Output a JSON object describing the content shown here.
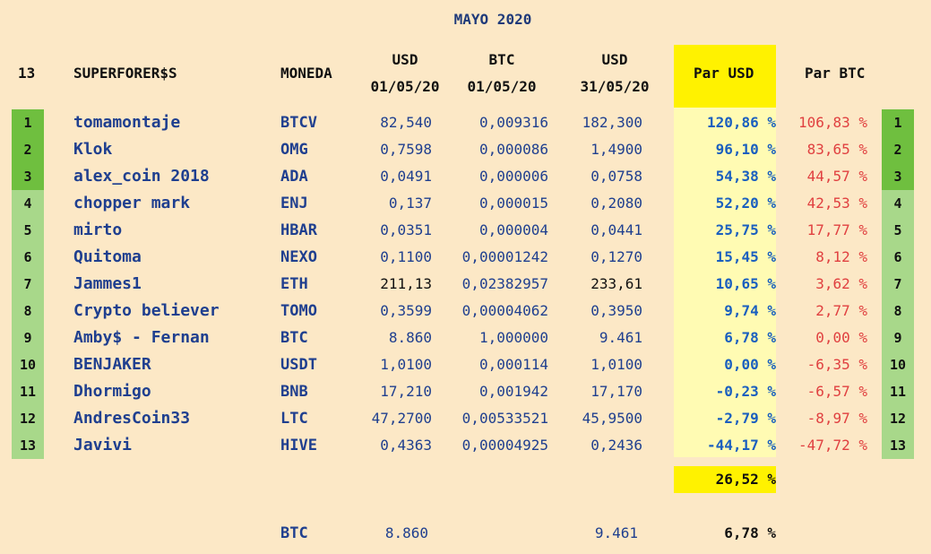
{
  "title": "MAYO 2020",
  "headers": {
    "count": "13",
    "name": "SUPERFORER$S",
    "coin": "MONEDA",
    "usd1_top": "USD",
    "usd1_bottom": "01/05/20",
    "btc1_top": "BTC",
    "btc1_bottom": "01/05/20",
    "usd2_top": "USD",
    "usd2_bottom": "31/05/20",
    "par_usd": "Par USD",
    "par_btc": "Par BTC"
  },
  "rows": [
    {
      "rank": "1",
      "name": "tomamontaje",
      "coin": "BTCV",
      "usd1": "82,540",
      "btc1": "0,009316",
      "usd2": "182,300",
      "par_usd": "120,86 %",
      "par_btc": "106,83 %"
    },
    {
      "rank": "2",
      "name": "Klok",
      "coin": "OMG",
      "usd1": "0,7598",
      "btc1": "0,000086",
      "usd2": "1,4900",
      "par_usd": "96,10 %",
      "par_btc": "83,65 %"
    },
    {
      "rank": "3",
      "name": "alex_coin 2018",
      "coin": "ADA",
      "usd1": "0,0491",
      "btc1": "0,000006",
      "usd2": "0,0758",
      "par_usd": "54,38 %",
      "par_btc": "44,57 %"
    },
    {
      "rank": "4",
      "name": "chopper mark",
      "coin": "ENJ",
      "usd1": "0,137",
      "btc1": "0,000015",
      "usd2": "0,2080",
      "par_usd": "52,20 %",
      "par_btc": "42,53 %"
    },
    {
      "rank": "5",
      "name": "mirto",
      "coin": "HBAR",
      "usd1": "0,0351",
      "btc1": "0,000004",
      "usd2": "0,0441",
      "par_usd": "25,75 %",
      "par_btc": "17,77 %"
    },
    {
      "rank": "6",
      "name": "Quitoma",
      "coin": "NEXO",
      "usd1": "0,1100",
      "btc1": "0,00001242",
      "usd2": "0,1270",
      "par_usd": "15,45 %",
      "par_btc": "8,12 %"
    },
    {
      "rank": "7",
      "name": "Jammes1",
      "coin": "ETH",
      "usd1": "211,13",
      "btc1": "0,02382957",
      "usd2": "233,61",
      "par_usd": "10,65 %",
      "par_btc": "3,62 %"
    },
    {
      "rank": "8",
      "name": "Crypto believer",
      "coin": "TOMO",
      "usd1": "0,3599",
      "btc1": "0,00004062",
      "usd2": "0,3950",
      "par_usd": "9,74 %",
      "par_btc": "2,77 %"
    },
    {
      "rank": "9",
      "name": "Amby$ -  Fernan",
      "coin": "BTC",
      "usd1": "8.860",
      "btc1": "1,000000",
      "usd2": "9.461",
      "par_usd": "6,78 %",
      "par_btc": "0,00 %"
    },
    {
      "rank": "10",
      "name": "BENJAKER",
      "coin": "USDT",
      "usd1": "1,0100",
      "btc1": "0,000114",
      "usd2": "1,0100",
      "par_usd": "0,00 %",
      "par_btc": "-6,35 %"
    },
    {
      "rank": "11",
      "name": "Dhormigo",
      "coin": "BNB",
      "usd1": "17,210",
      "btc1": "0,001942",
      "usd2": "17,170",
      "par_usd": "-0,23 %",
      "par_btc": "-6,57 %"
    },
    {
      "rank": "12",
      "name": "AndresCoin33",
      "coin": "LTC",
      "usd1": "47,2700",
      "btc1": "0,00533521",
      "usd2": "45,9500",
      "par_usd": "-2,79 %",
      "par_btc": "-8,97 %"
    },
    {
      "rank": "13",
      "name": "Javivi",
      "coin": "HIVE",
      "usd1": "0,4363",
      "btc1": "0,00004925",
      "usd2": "0,2436",
      "par_usd": "-44,17 %",
      "par_btc": "-47,72 %"
    }
  ],
  "average": "26,52 %",
  "btc_row": {
    "coin": "BTC",
    "usd1": "8.860",
    "usd2": "9.461",
    "par_usd": "6,78 %"
  },
  "colors": {
    "background": "#fce8c6",
    "rank_dark": "#6fbf3f",
    "rank_light": "#a8d88a",
    "par_usd_highlight": "#fff200",
    "par_usd_column": "#fffbb3",
    "positive_blue": "#1a5fbf",
    "negative_red": "#e04040"
  }
}
